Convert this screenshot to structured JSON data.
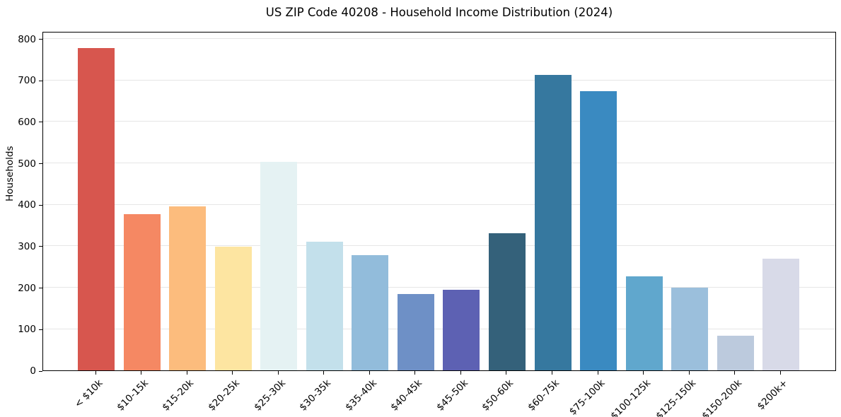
{
  "chart_data": {
    "type": "bar",
    "title": "US ZIP Code 40208 - Household Income Distribution (2024)",
    "xlabel": "",
    "ylabel": "Households",
    "categories": [
      "< $10k",
      "$10-15k",
      "$15-20k",
      "$20-25k",
      "$25-30k",
      "$30-35k",
      "$35-40k",
      "$40-45k",
      "$45-50k",
      "$50-60k",
      "$60-75k",
      "$75-100k",
      "$100-125k",
      "$125-150k",
      "$150-200k",
      "$200k+"
    ],
    "values": [
      777,
      376,
      396,
      299,
      502,
      311,
      277,
      184,
      195,
      330,
      712,
      673,
      226,
      200,
      83,
      270
    ],
    "bar_colors": [
      "#d7564e",
      "#f58863",
      "#fcbc7d",
      "#fde5a1",
      "#e5f2f3",
      "#c3e0eb",
      "#92bcdb",
      "#6e90c6",
      "#5d61b3",
      "#34617a",
      "#36789f",
      "#3a8ac1",
      "#60a7cd",
      "#9bbfdc",
      "#bccadd",
      "#d8dae8"
    ],
    "yticks": [
      0,
      100,
      200,
      300,
      400,
      500,
      600,
      700,
      800
    ],
    "ylim": [
      0,
      818
    ],
    "grid": "horizontal",
    "legend": "none",
    "xtick_rotation": 45
  },
  "colors": {
    "background": "#ffffff",
    "gridline": "#e6e6e6",
    "spine": "#000000",
    "text": "#000000"
  }
}
